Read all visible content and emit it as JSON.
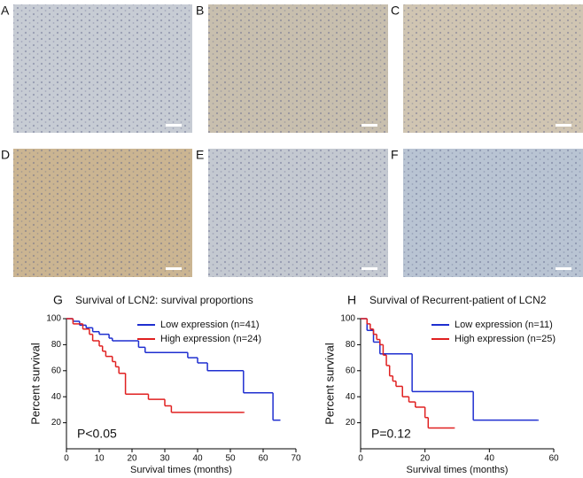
{
  "panels": [
    "A",
    "B",
    "C",
    "D",
    "E",
    "F"
  ],
  "chart_data": [
    {
      "type": "line",
      "panel_label": "G",
      "title": "Survival of LCN2: survival proportions",
      "xlabel": "Survival times (months)",
      "ylabel": "Percent survival",
      "annotation": "P<0.05",
      "xlim": [
        0,
        70
      ],
      "xticks": [
        0,
        10,
        20,
        30,
        40,
        50,
        60,
        70
      ],
      "ylim": [
        0,
        100
      ],
      "yticks": [
        20,
        40,
        60,
        80,
        100
      ],
      "series": [
        {
          "name": "Low expression (n=41)",
          "color": "#1f2fd0",
          "x": [
            0,
            2,
            4,
            6,
            8,
            10,
            13,
            14,
            22,
            24,
            37,
            40,
            43,
            54,
            63,
            65
          ],
          "values": [
            100,
            98,
            95,
            93,
            90,
            88,
            85,
            83,
            78,
            74,
            70,
            66,
            60,
            43,
            22,
            22
          ]
        },
        {
          "name": "High expression (n=24)",
          "color": "#e02020",
          "x": [
            0,
            2,
            5,
            7,
            8,
            10,
            11,
            12,
            14,
            15,
            16,
            18,
            25,
            30,
            32,
            54
          ],
          "values": [
            100,
            96,
            92,
            88,
            83,
            79,
            75,
            71,
            67,
            63,
            58,
            42,
            38,
            33,
            28,
            28
          ]
        }
      ]
    },
    {
      "type": "line",
      "panel_label": "H",
      "title": "Survival of Recurrent-patient of LCN2",
      "xlabel": "Survival times (months)",
      "ylabel": "Percent survival",
      "annotation": "P=0.12",
      "xlim": [
        0,
        60
      ],
      "xticks": [
        0,
        20,
        40,
        60
      ],
      "ylim": [
        0,
        100
      ],
      "yticks": [
        20,
        40,
        60,
        80,
        100
      ],
      "series": [
        {
          "name": "Low expression (n=11)",
          "color": "#1f2fd0",
          "x": [
            0,
            2,
            4,
            6,
            16,
            35,
            55
          ],
          "values": [
            100,
            91,
            82,
            73,
            44,
            22,
            22
          ]
        },
        {
          "name": "High expression (n=25)",
          "color": "#e02020",
          "x": [
            0,
            2,
            3,
            4,
            5,
            6,
            7,
            8,
            9,
            10,
            11,
            13,
            15,
            17,
            20,
            21,
            29
          ],
          "values": [
            100,
            96,
            92,
            88,
            84,
            80,
            72,
            64,
            56,
            52,
            48,
            40,
            36,
            32,
            24,
            16,
            16
          ]
        }
      ]
    }
  ]
}
